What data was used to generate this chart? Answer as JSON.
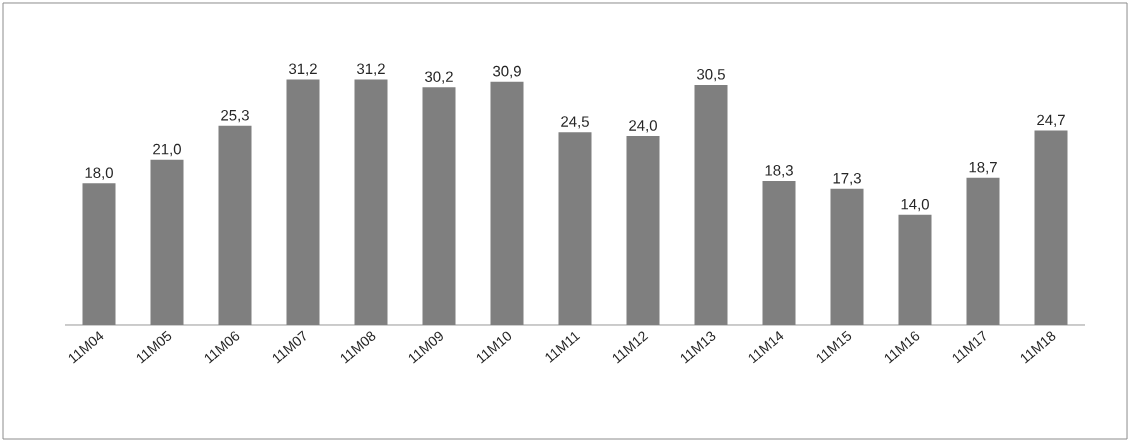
{
  "chart_data": {
    "type": "bar",
    "categories": [
      "11M04",
      "11M05",
      "11M06",
      "11M07",
      "11M08",
      "11M09",
      "11M10",
      "11M11",
      "11M12",
      "11M13",
      "11M14",
      "11M15",
      "11M16",
      "11M17",
      "11M18"
    ],
    "values": [
      18.0,
      21.0,
      25.3,
      31.2,
      31.2,
      30.2,
      30.9,
      24.5,
      24.0,
      30.5,
      18.3,
      17.3,
      14.0,
      18.7,
      24.7
    ],
    "value_labels": [
      "18,0",
      "21,0",
      "25,3",
      "31,2",
      "31,2",
      "30,2",
      "30,9",
      "24,5",
      "24,0",
      "30,5",
      "18,3",
      "17,3",
      "14,0",
      "18,7",
      "24,7"
    ],
    "color": "#7f7f7f"
  }
}
